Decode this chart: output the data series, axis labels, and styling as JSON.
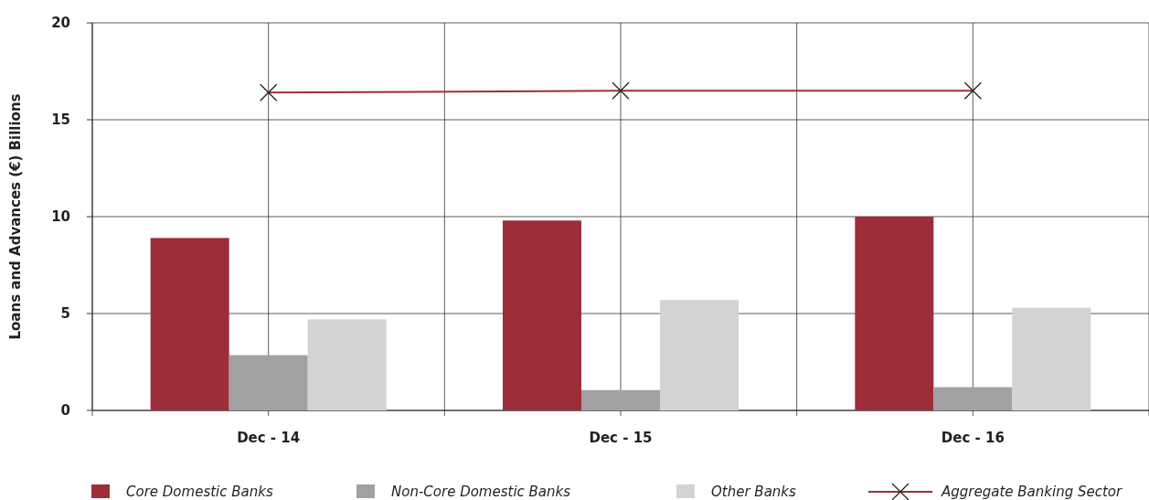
{
  "chart_data": {
    "type": "bar",
    "ylabel": "Loans and Advances (€) Billions",
    "categories": [
      "Dec - 14",
      "Dec - 15",
      "Dec - 16"
    ],
    "series": [
      {
        "name": "Core Domestic Banks",
        "color": "#9e2d3a",
        "values": [
          8.9,
          9.8,
          10.0
        ]
      },
      {
        "name": "Non-Core Domestic Banks",
        "color": "#a1a1a4",
        "values": [
          2.85,
          1.05,
          1.2
        ]
      },
      {
        "name": "Other Banks",
        "color": "#d2d3d5",
        "values": [
          4.7,
          5.7,
          5.3
        ]
      },
      {
        "name": "Aggregate Banking Sector",
        "type": "line",
        "color": "#9e2d3a",
        "values": [
          16.4,
          16.5,
          16.5
        ],
        "marker": "cross"
      }
    ],
    "ylim": [
      0,
      20
    ],
    "yticks": [
      0,
      5,
      10,
      15,
      20
    ],
    "grid": true,
    "legend": "bottom"
  }
}
